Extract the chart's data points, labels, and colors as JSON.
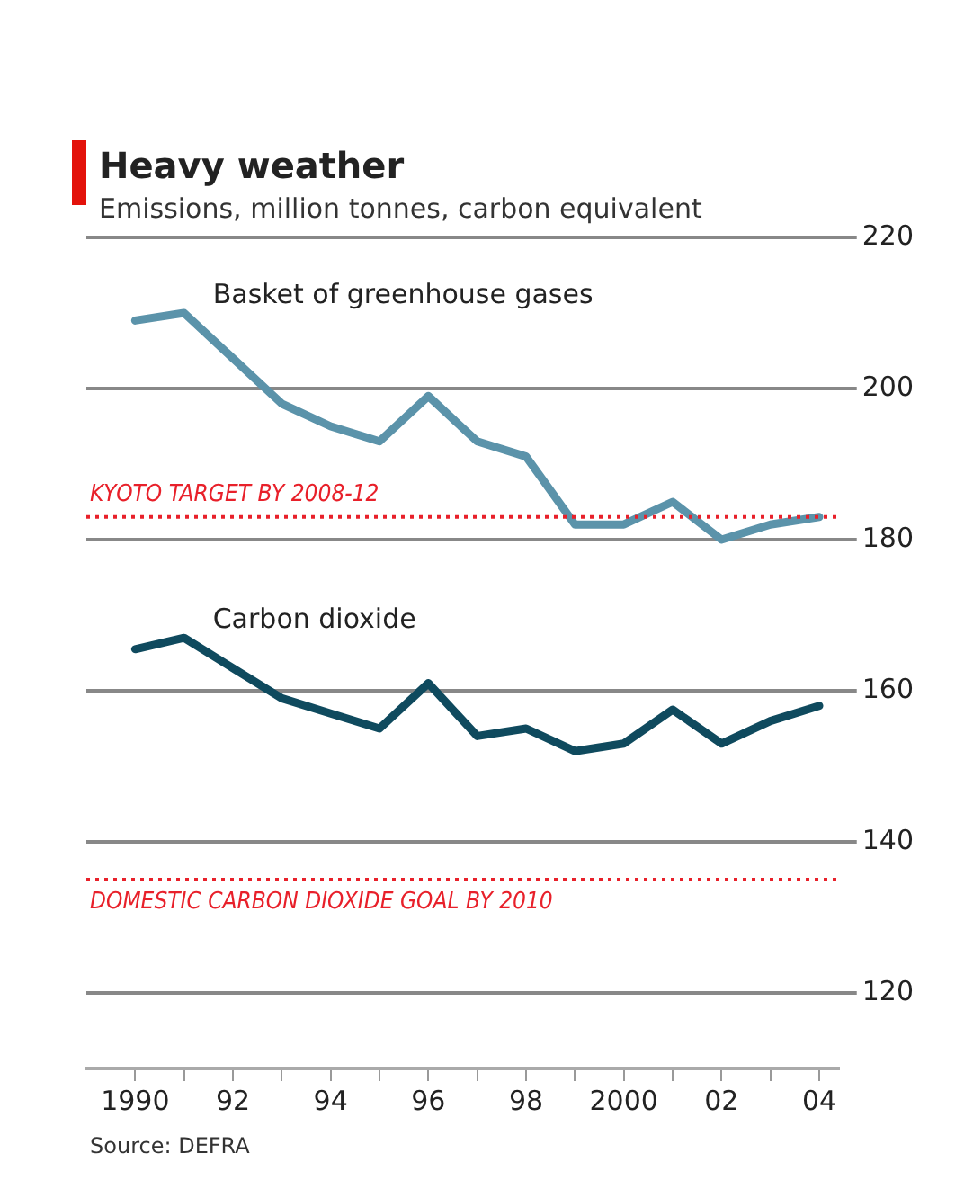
{
  "chart_data": {
    "type": "line",
    "title": "Heavy weather",
    "subtitle": "Emissions, million tonnes, carbon equivalent",
    "x": [
      1990,
      1991,
      1992,
      1993,
      1994,
      1995,
      1996,
      1997,
      1998,
      1999,
      2000,
      2001,
      2002,
      2003,
      2004
    ],
    "series": [
      {
        "name": "Basket of greenhouse gases",
        "color": "#5b93aa",
        "values": [
          209,
          210,
          204,
          198,
          195,
          193,
          199,
          193,
          191,
          182,
          182,
          185,
          180,
          182,
          183
        ]
      },
      {
        "name": "Carbon dioxide",
        "color": "#0f4a5e",
        "values": [
          165.5,
          167,
          163,
          159,
          157,
          155,
          161,
          154,
          155,
          152,
          153,
          157.5,
          153,
          156,
          158
        ]
      }
    ],
    "xlim": [
      1989,
      2004.4
    ],
    "xticks": [
      1990,
      {
        "value": 1991,
        "label": null
      },
      {
        "value": 1992,
        "label": "92"
      },
      {
        "value": 1993,
        "label": null
      },
      {
        "value": 1994,
        "label": "94"
      },
      {
        "value": 1995,
        "label": null
      },
      {
        "value": 1996,
        "label": "96"
      },
      {
        "value": 1997,
        "label": null
      },
      {
        "value": 1998,
        "label": "98"
      },
      {
        "value": 1999,
        "label": null
      },
      2000,
      {
        "value": 2001,
        "label": null
      },
      {
        "value": 2002,
        "label": "02"
      },
      {
        "value": 2003,
        "label": null
      },
      {
        "value": 2004,
        "label": "04"
      }
    ],
    "ylim": [
      110,
      220
    ],
    "yticks": [
      120,
      140,
      160,
      180,
      200,
      220
    ],
    "ref_lines": [
      {
        "axis": "y",
        "value": 183,
        "label": "KYOTO TARGET BY 2008-12",
        "color": "#e8202a",
        "line_style": "dotted"
      },
      {
        "axis": "y",
        "value": 135,
        "label": "DOMESTIC CARBON DIOXIDE GOAL BY 2010",
        "color": "#e8202a",
        "line_style": "dotted"
      }
    ],
    "grid": "y",
    "legend": false,
    "marker": "none",
    "line_style": "solid",
    "annotations": [
      "Source: DEFRA"
    ]
  }
}
